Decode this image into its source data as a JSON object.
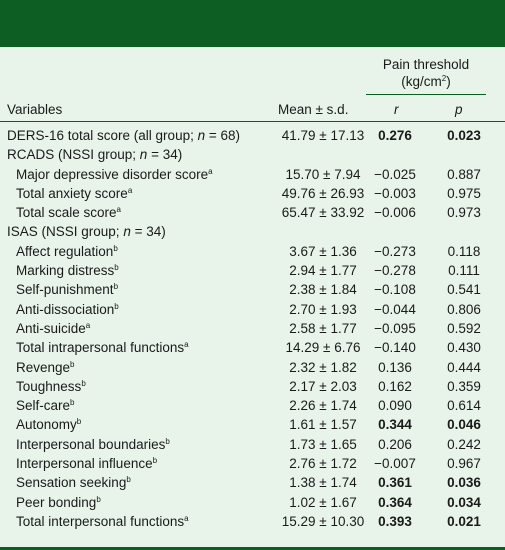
{
  "table": {
    "header": {
      "pain_threshold_line1": "Pain threshold",
      "pain_threshold_line2": "(kg/cm",
      "pain_threshold_sup": "2",
      "pain_threshold_close": ")",
      "col_variables": "Variables",
      "col_mean": "Mean ± s.d.",
      "col_r": "r",
      "col_p": "p"
    },
    "rows": [
      {
        "label": "DERS-16 total score (all group; ",
        "n_text": "n = 68)",
        "sup": "",
        "mean": "41.79 ± 17.13",
        "r": "0.276",
        "p": "0.023",
        "indent": false,
        "bold": true
      },
      {
        "label": "RCADS (NSSI group; ",
        "n_text": "n = 34)",
        "sup": "",
        "mean": "",
        "r": "",
        "p": "",
        "indent": false,
        "bold": false
      },
      {
        "label": "Major depressive disorder score",
        "n_text": "",
        "sup": "a",
        "mean": "15.70 ± 7.94",
        "r": "−0.025",
        "p": "0.887",
        "indent": true,
        "bold": false
      },
      {
        "label": "Total anxiety score",
        "n_text": "",
        "sup": "a",
        "mean": "49.76 ± 26.93",
        "r": "−0.003",
        "p": "0.975",
        "indent": true,
        "bold": false
      },
      {
        "label": "Total scale score",
        "n_text": "",
        "sup": "a",
        "mean": "65.47 ± 33.92",
        "r": "−0.006",
        "p": "0.973",
        "indent": true,
        "bold": false
      },
      {
        "label": "ISAS (NSSI group; ",
        "n_text": "n = 34)",
        "sup": "",
        "mean": "",
        "r": "",
        "p": "",
        "indent": false,
        "bold": false
      },
      {
        "label": "Affect regulation",
        "n_text": "",
        "sup": "b",
        "mean": "3.67 ± 1.36",
        "r": "−0.273",
        "p": "0.118",
        "indent": true,
        "bold": false
      },
      {
        "label": "Marking distress",
        "n_text": "",
        "sup": "b",
        "mean": "2.94 ± 1.77",
        "r": "−0.278",
        "p": "0.111",
        "indent": true,
        "bold": false
      },
      {
        "label": "Self-punishment",
        "n_text": "",
        "sup": "b",
        "mean": "2.38 ± 1.84",
        "r": "−0.108",
        "p": "0.541",
        "indent": true,
        "bold": false
      },
      {
        "label": "Anti-dissociation",
        "n_text": "",
        "sup": "b",
        "mean": "2.70 ± 1.93",
        "r": "−0.044",
        "p": "0.806",
        "indent": true,
        "bold": false
      },
      {
        "label": "Anti-suicide",
        "n_text": "",
        "sup": "a",
        "mean": "2.58 ± 1.77",
        "r": "−0.095",
        "p": "0.592",
        "indent": true,
        "bold": false
      },
      {
        "label": "Total intrapersonal functions",
        "n_text": "",
        "sup": "a",
        "mean": "14.29 ± 6.76",
        "r": "−0.140",
        "p": "0.430",
        "indent": true,
        "bold": false
      },
      {
        "label": "Revenge",
        "n_text": "",
        "sup": "b",
        "mean": "2.32 ± 1.82",
        "r": "0.136",
        "p": "0.444",
        "indent": true,
        "bold": false
      },
      {
        "label": "Toughness",
        "n_text": "",
        "sup": "b",
        "mean": "2.17 ± 2.03",
        "r": "0.162",
        "p": "0.359",
        "indent": true,
        "bold": false
      },
      {
        "label": "Self-care",
        "n_text": "",
        "sup": "b",
        "mean": "2.26 ± 1.74",
        "r": "0.090",
        "p": "0.614",
        "indent": true,
        "bold": false
      },
      {
        "label": "Autonomy",
        "n_text": "",
        "sup": "b",
        "mean": "1.61 ± 1.57",
        "r": "0.344",
        "p": "0.046",
        "indent": true,
        "bold": true
      },
      {
        "label": "Interpersonal boundaries",
        "n_text": "",
        "sup": "b",
        "mean": "1.73 ± 1.65",
        "r": "0.206",
        "p": "0.242",
        "indent": true,
        "bold": false
      },
      {
        "label": "Interpersonal influence",
        "n_text": "",
        "sup": "b",
        "mean": "2.76 ± 1.72",
        "r": "−0.007",
        "p": "0.967",
        "indent": true,
        "bold": false
      },
      {
        "label": "Sensation seeking",
        "n_text": "",
        "sup": "b",
        "mean": "1.38 ± 1.74",
        "r": "0.361",
        "p": "0.036",
        "indent": true,
        "bold": true
      },
      {
        "label": "Peer bonding",
        "n_text": "",
        "sup": "b",
        "mean": "1.02 ± 1.67",
        "r": "0.364",
        "p": "0.034",
        "indent": true,
        "bold": true
      },
      {
        "label": "Total interpersonal functions",
        "n_text": "",
        "sup": "a",
        "mean": "15.29 ± 10.30",
        "r": "0.393",
        "p": "0.021",
        "indent": true,
        "bold": true
      }
    ]
  },
  "colors": {
    "header_bar": "#0c5e23",
    "background": "#e8f4ea"
  }
}
